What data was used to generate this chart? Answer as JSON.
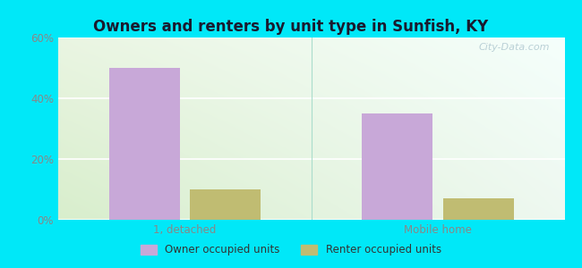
{
  "title": "Owners and renters by unit type in Sunfish, KY",
  "categories": [
    "1, detached",
    "Mobile home"
  ],
  "owner_values": [
    50.0,
    35.0
  ],
  "renter_values": [
    10.0,
    7.0
  ],
  "owner_color": "#c8a8d8",
  "renter_color": "#c0bc72",
  "ylim": [
    0,
    60
  ],
  "yticks": [
    0,
    20,
    40,
    60
  ],
  "ytick_labels": [
    "0%",
    "20%",
    "40%",
    "60%"
  ],
  "legend_owner": "Owner occupied units",
  "legend_renter": "Renter occupied units",
  "bar_width": 0.28,
  "bg_outer": "#00e8f8",
  "bg_plot_topleft": "#e8f5e0",
  "bg_plot_topright": "#f8fffe",
  "bg_plot_bottom": "#d8eed0",
  "watermark": "City-Data.com",
  "title_color": "#1a1a2e",
  "tick_color": "#888888",
  "grid_color": "#ffffff"
}
